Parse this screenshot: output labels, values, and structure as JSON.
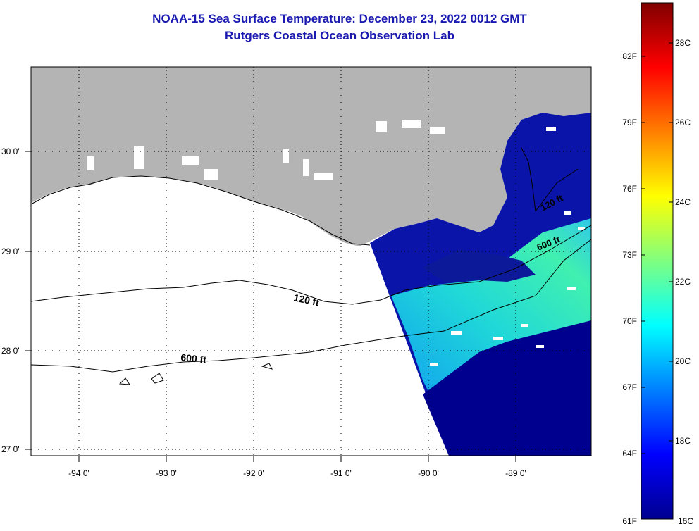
{
  "header": {
    "title": "NOAA-15 Sea Surface Temperature:  December 23, 2022 0012 GMT",
    "subtitle": "Rutgers Coastal Ocean Observation Lab"
  },
  "map": {
    "lat_labels": [
      "30 0'",
      "29 0'",
      "28 0'",
      "27 0'"
    ],
    "lon_labels": [
      "-94 0'",
      "-93 0'",
      "-92 0'",
      "-91 0'",
      "-90 0'",
      "-89 0'"
    ],
    "contours": [
      {
        "label": "120 ft"
      },
      {
        "label": "600 ft"
      },
      {
        "label": "120 ft"
      },
      {
        "label": "600 ft"
      }
    ],
    "colors": {
      "land": "#b4b4b4",
      "cloud": "#ffffff",
      "sst_cold": "#00008f",
      "sst_warm": "#00ffff"
    }
  },
  "colorbar": {
    "fahrenheit_labels": [
      "82F",
      "79F",
      "76F",
      "73F",
      "70F",
      "67F",
      "64F",
      "61F"
    ],
    "celsius_labels": [
      "28C",
      "26C",
      "24C",
      "22C",
      "20C",
      "18C",
      "16C"
    ]
  }
}
